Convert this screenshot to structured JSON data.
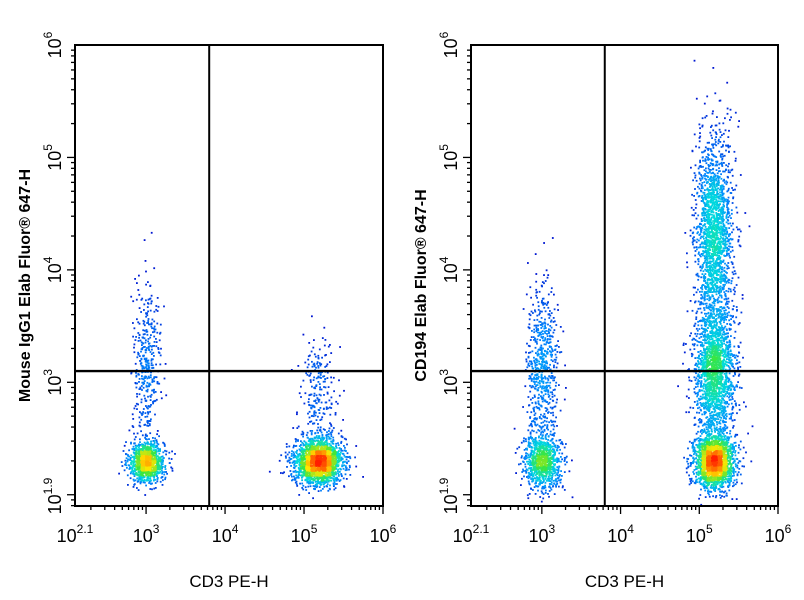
{
  "chart_data": [
    {
      "type": "scatter",
      "subtype": "flow-cytometry-density-plot",
      "xlabel": "CD3 PE-H",
      "ylabel": "Mouse IgG1 Elab Fluor® 647-H",
      "x_scale": "log",
      "y_scale": "log",
      "xlim": [
        125.9,
        1000000
      ],
      "ylim": [
        79.4,
        1000000
      ],
      "x_ticks": [
        {
          "base": "10",
          "exp": "2.1",
          "value": 125.9
        },
        {
          "base": "10",
          "exp": "3",
          "value": 1000
        },
        {
          "base": "10",
          "exp": "4",
          "value": 10000
        },
        {
          "base": "10",
          "exp": "5",
          "value": 100000
        },
        {
          "base": "10",
          "exp": "6",
          "value": 1000000
        }
      ],
      "y_ticks": [
        {
          "base": "10",
          "exp": "1.9",
          "value": 79.4
        },
        {
          "base": "10",
          "exp": "3",
          "value": 1000
        },
        {
          "base": "10",
          "exp": "4",
          "value": 10000
        },
        {
          "base": "10",
          "exp": "5",
          "value": 100000
        },
        {
          "base": "10",
          "exp": "6",
          "value": 1000000
        }
      ],
      "gate": {
        "x": 6300,
        "y": 1260
      },
      "populations": [
        {
          "center": [
            1000,
            200
          ],
          "spread": [
            0.11,
            0.09
          ],
          "count": 1100
        },
        {
          "center": [
            1000,
            1500
          ],
          "spread": [
            0.09,
            0.35
          ],
          "count": 380
        },
        {
          "center": [
            150000,
            200
          ],
          "spread": [
            0.15,
            0.1
          ],
          "count": 2100
        },
        {
          "center": [
            150000,
            800
          ],
          "spread": [
            0.12,
            0.25
          ],
          "count": 250
        }
      ]
    },
    {
      "type": "scatter",
      "subtype": "flow-cytometry-density-plot",
      "xlabel": "CD3 PE-H",
      "ylabel": "CD194 Elab Fluor® 647-H",
      "x_scale": "log",
      "y_scale": "log",
      "xlim": [
        125.9,
        1000000
      ],
      "ylim": [
        79.4,
        1000000
      ],
      "x_ticks": [
        {
          "base": "10",
          "exp": "2.1",
          "value": 125.9
        },
        {
          "base": "10",
          "exp": "3",
          "value": 1000
        },
        {
          "base": "10",
          "exp": "4",
          "value": 10000
        },
        {
          "base": "10",
          "exp": "5",
          "value": 100000
        },
        {
          "base": "10",
          "exp": "6",
          "value": 1000000
        }
      ],
      "y_ticks": [
        {
          "base": "10",
          "exp": "1.9",
          "value": 79.4
        },
        {
          "base": "10",
          "exp": "3",
          "value": 1000
        },
        {
          "base": "10",
          "exp": "4",
          "value": 10000
        },
        {
          "base": "10",
          "exp": "5",
          "value": 100000
        },
        {
          "base": "10",
          "exp": "6",
          "value": 1000000
        }
      ],
      "gate": {
        "x": 6300,
        "y": 1260
      },
      "populations": [
        {
          "center": [
            1000,
            200
          ],
          "spread": [
            0.12,
            0.12
          ],
          "count": 900
        },
        {
          "center": [
            1000,
            1300
          ],
          "spread": [
            0.1,
            0.38
          ],
          "count": 650
        },
        {
          "center": [
            150000,
            200
          ],
          "spread": [
            0.13,
            0.12
          ],
          "count": 1900
        },
        {
          "center": [
            150000,
            1200
          ],
          "spread": [
            0.13,
            0.3
          ],
          "count": 1800
        },
        {
          "center": [
            150000,
            20000
          ],
          "spread": [
            0.12,
            0.45
          ],
          "count": 1900
        }
      ]
    }
  ],
  "colors": {
    "density_low": "#0000c8",
    "density_mid": "#00c8dc",
    "density_high": "#ff1e00",
    "axis": "#000000"
  }
}
